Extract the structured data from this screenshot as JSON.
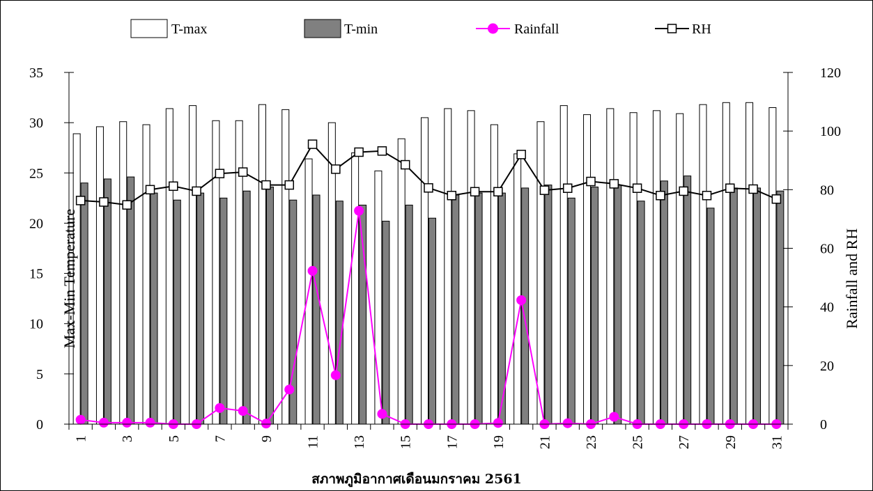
{
  "chart_data": {
    "type": "bar",
    "title": "",
    "xlabel": "สภาพภูมิอากาศเดือนมกราคม 2561",
    "ylabel": "Max-Min Temperature",
    "y2label": "Rainfall and RH",
    "ylim": [
      0,
      35
    ],
    "y2lim": [
      0,
      120
    ],
    "y_ticks": [
      "0",
      "5",
      "10",
      "15",
      "20",
      "25",
      "30",
      "35"
    ],
    "y2_ticks": [
      "0",
      "20",
      "40",
      "60",
      "80",
      "100",
      "120"
    ],
    "x_ticks": [
      "1",
      "3",
      "5",
      "7",
      "9",
      "11",
      "13",
      "15",
      "17",
      "19",
      "21",
      "23",
      "25",
      "27",
      "29",
      "31"
    ],
    "categories": [
      1,
      2,
      3,
      4,
      5,
      6,
      7,
      8,
      9,
      10,
      11,
      12,
      13,
      14,
      15,
      16,
      17,
      18,
      19,
      20,
      21,
      22,
      23,
      24,
      25,
      26,
      27,
      28,
      29,
      30,
      31
    ],
    "legend_position": "top",
    "grid": false,
    "series": [
      {
        "name": "T-max",
        "type": "bar",
        "axis": "left",
        "fill": "#ffffff",
        "stroke": "#000000",
        "values": [
          28.9,
          29.6,
          30.1,
          29.8,
          31.4,
          31.7,
          30.2,
          30.2,
          31.8,
          31.3,
          26.4,
          30.0,
          27.0,
          25.2,
          28.4,
          30.5,
          31.4,
          31.2,
          29.8,
          26.9,
          30.1,
          31.7,
          30.8,
          31.4,
          31.0,
          31.2,
          30.9,
          31.8,
          32.0,
          32.0,
          31.5
        ]
      },
      {
        "name": "T-min",
        "type": "bar",
        "axis": "left",
        "fill": "#808080",
        "stroke": "#000000",
        "values": [
          24.0,
          24.4,
          24.6,
          23.0,
          22.3,
          23.0,
          22.5,
          23.2,
          23.6,
          22.3,
          22.8,
          22.2,
          21.8,
          20.2,
          21.8,
          20.5,
          22.8,
          23.0,
          23.0,
          23.5,
          23.8,
          22.5,
          23.6,
          23.8,
          22.2,
          24.2,
          24.7,
          21.5,
          23.5,
          23.5,
          23.2
        ]
      },
      {
        "name": "Rainfall",
        "type": "line",
        "axis": "right",
        "color": "#ff00ff",
        "marker": "circle",
        "values": [
          1.5,
          0.5,
          0.5,
          0.5,
          0,
          0,
          5.5,
          4.5,
          0.2,
          11.8,
          52.3,
          16.7,
          72.8,
          3.5,
          0,
          0,
          0,
          0,
          0.4,
          42.3,
          0,
          0.3,
          0,
          2.5,
          0,
          0,
          0,
          0,
          0,
          0,
          0
        ]
      },
      {
        "name": "RH",
        "type": "line",
        "axis": "right",
        "color": "#000000",
        "marker": "square",
        "values": [
          76.3,
          75.8,
          74.8,
          80.0,
          81.2,
          79.5,
          85.5,
          86.0,
          81.6,
          81.6,
          95.5,
          87.0,
          92.8,
          93.2,
          88.5,
          80.6,
          78.0,
          79.3,
          79.3,
          92.0,
          79.8,
          80.5,
          82.8,
          82.0,
          80.5,
          78.0,
          79.5,
          78.0,
          80.5,
          80.2,
          76.8
        ]
      }
    ]
  }
}
